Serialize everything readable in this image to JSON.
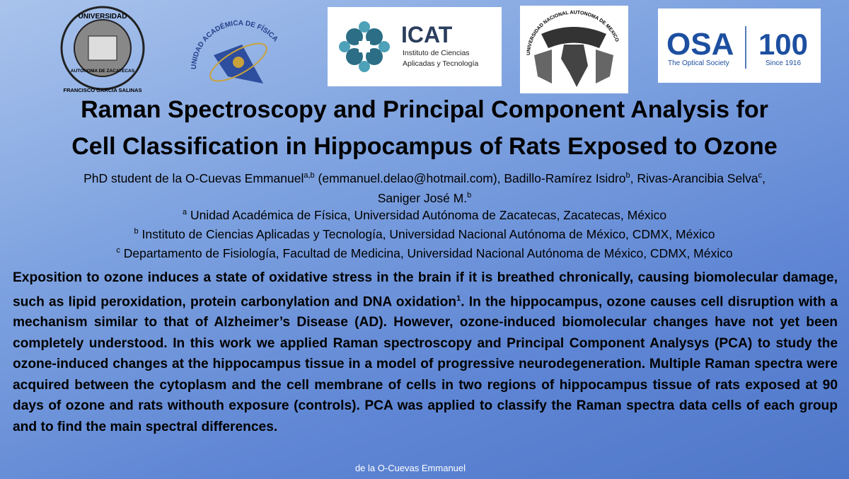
{
  "logos": {
    "uaz": {
      "top": "UNIVERSIDAD",
      "middle": "AUTONOMA DE ZACATECAS",
      "bottom": "FRANCISCO GARCIA SALINAS"
    },
    "uaf": "UNIDAD ACADÉMICA DE FÍSICA",
    "icat": {
      "name": "ICAT",
      "line1": "Instituto de Ciencias",
      "line2": "Aplicadas y Tecnología"
    },
    "unam": "UNIVERSIDAD NACIONAL AUTONOMA DE MEXICO",
    "osa": {
      "name": "OSA",
      "subtitle": "The Optical Society",
      "anniversary": "100",
      "since": "Since 1916"
    }
  },
  "header": {
    "title_line1": "Raman Spectroscopy and Principal Component Analysis for",
    "title_line2": "Cell Classification in Hippocampus of Rats Exposed to Ozone"
  },
  "authors": [
    {
      "text": "PhD student de la O-Cuevas Emmanuel",
      "sup": "a,b"
    },
    {
      "text": "(emmanuel.delao@hotmail.com), Badillo-Ramírez Isidro",
      "sup": "b"
    },
    {
      "text": ", Rivas-Arancibia Selva",
      "sup": "c"
    },
    {
      "text": ", Saniger José M.",
      "sup": "b"
    }
  ],
  "affiliations": [
    {
      "sup": "a",
      "text": "Unidad Académica de Física, Universidad Autónoma de Zacatecas, Zacatecas, México"
    },
    {
      "sup": "b",
      "text": "Instituto de Ciencias Aplicadas y Tecnología, Universidad Nacional Autónoma de México, CDMX, México"
    },
    {
      "sup": "c",
      "text": "Departamento de Fisiología, Facultad de Medicina, Universidad Nacional Autónoma de México, CDMX, México"
    }
  ],
  "abstract": {
    "part1": "Exposition to ozone induces a state of oxidative stress in the brain if it is breathed chronically, causing biomolecular damage, such as lipid peroxidation, protein carbonylation and DNA oxidation",
    "ref": "1",
    "part2": ". In the hippocampus, ozone causes cell disruption with a mechanism similar to that of Alzheimer’s Disease (AD). However, ozone-induced biomolecular changes have not yet been completely understood. In this work we applied Raman spectroscopy and Principal Component Analysys (PCA) to study the ozone-induced changes at the  hippocampus tissue in a model of progressive neurodegeneration. Multiple Raman spectra were acquired between the cytoplasm and the cell membrane of cells in two regions of hippocampus tissue of rats exposed at 90 days of ozone and rats withouth exposure (controls). PCA was applied to classify the Raman spectra data cells of each group and to find the main spectral differences."
  },
  "footer": "de la O-Cuevas Emmanuel"
}
